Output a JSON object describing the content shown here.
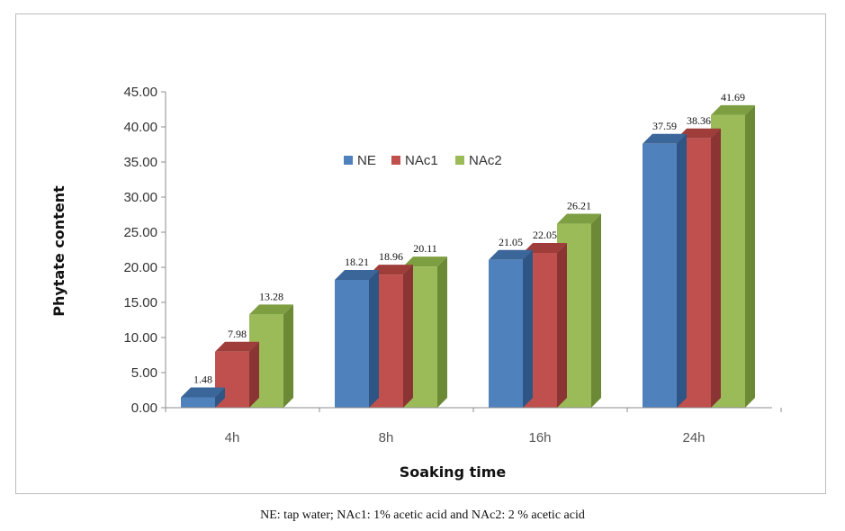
{
  "chart_data": {
    "type": "bar",
    "categories": [
      "4h",
      "8h",
      "16h",
      "24h"
    ],
    "series": [
      {
        "name": "NE",
        "values": [
          1.48,
          18.21,
          21.05,
          37.59
        ],
        "color": "#4F81BD",
        "side": "#2E5583",
        "top": "#3A6699"
      },
      {
        "name": "NAc1",
        "values": [
          7.98,
          18.96,
          22.05,
          38.36
        ],
        "color": "#C0504D",
        "side": "#8A3533",
        "top": "#9E3D3A"
      },
      {
        "name": "NAc2",
        "values": [
          13.28,
          20.11,
          26.21,
          41.69
        ],
        "color": "#9BBB59",
        "side": "#6C8A36",
        "top": "#7E9E42"
      }
    ],
    "data_labels": [
      [
        "1.48",
        "18.21",
        "21.05",
        "37.59"
      ],
      [
        "7.98",
        "18.96",
        "22.05",
        "38.36"
      ],
      [
        "13.28",
        "20.11",
        "26.21",
        "41.69"
      ]
    ],
    "yticks": [
      "0.00",
      "5.00",
      "10.00",
      "15.00",
      "20.00",
      "25.00",
      "30.00",
      "35.00",
      "40.00",
      "45.00"
    ],
    "ylim": [
      0,
      45
    ],
    "xlabel": "Soaking time",
    "ylabel": "Phytate content",
    "legend": "top-center",
    "grid": false
  },
  "caption": "NE: tap water; NAc1: 1% acetic acid and NAc2: 2 % acetic acid"
}
